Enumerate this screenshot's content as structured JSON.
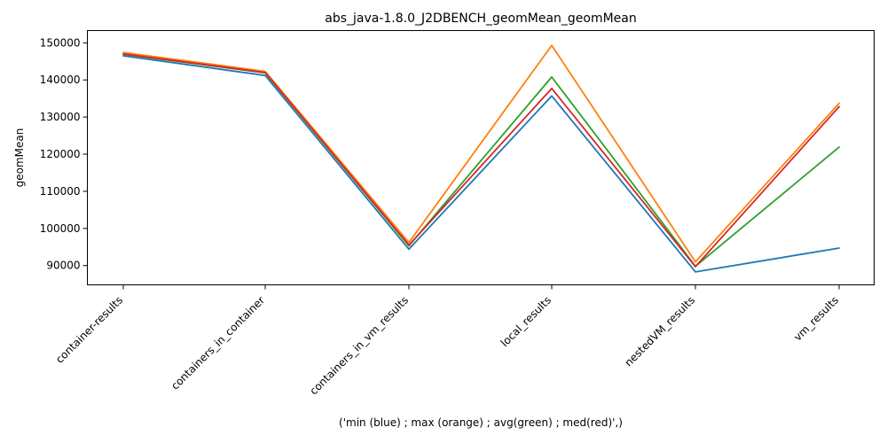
{
  "chart_data": {
    "type": "line",
    "title": "abs_java-1.8.0_J2DBENCH_geomMean_geomMean",
    "xlabel": "('min (blue) ; max (orange) ; avg(green) ; med(red)',)",
    "ylabel": "geomMean",
    "categories": [
      "container-results",
      "containers_in_container",
      "containers_in_vm_results",
      "local_results",
      "nestedVM_results",
      "vm_results"
    ],
    "ylim": [
      84800,
      153300
    ],
    "yticks": [
      90000,
      100000,
      110000,
      120000,
      130000,
      140000,
      150000
    ],
    "grid": false,
    "series": [
      {
        "color": "#1f77b4",
        "values": [
          146500,
          141200,
          94400,
          135700,
          88300,
          94700
        ]
      },
      {
        "color": "#ff7f0e",
        "values": [
          147400,
          142300,
          96200,
          149300,
          91000,
          133700
        ]
      },
      {
        "color": "#2ca02c",
        "values": [
          146900,
          141900,
          95300,
          140800,
          89800,
          121900
        ]
      },
      {
        "color": "#d62728",
        "values": [
          147000,
          142000,
          95500,
          137700,
          89700,
          132800
        ]
      }
    ]
  }
}
